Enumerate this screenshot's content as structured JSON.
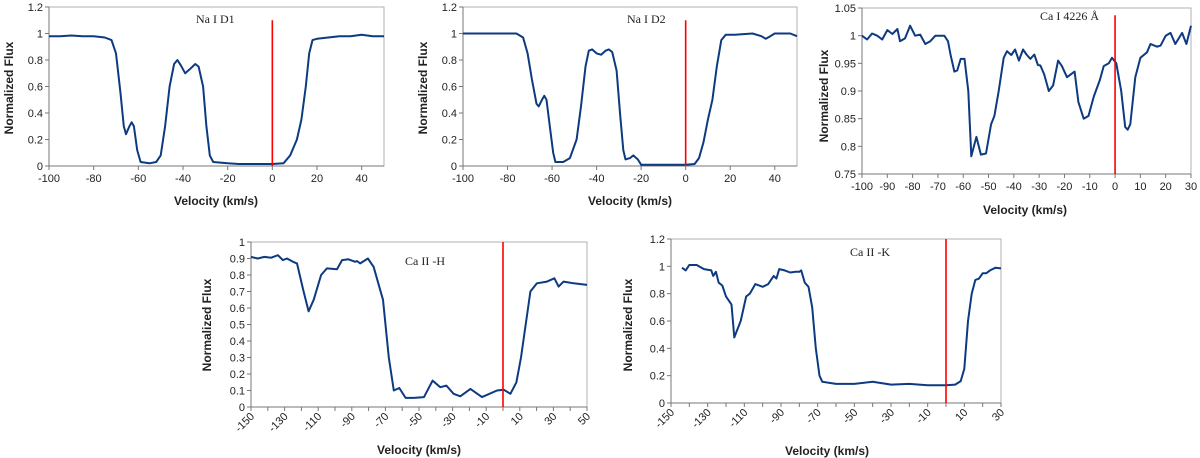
{
  "chart_data": [
    {
      "type": "line",
      "title": "Na I D1",
      "xlabel": "Velocity (km/s)",
      "ylabel": "Normalized Flux",
      "xlim": [
        -100,
        50
      ],
      "ylim": [
        0,
        1.2
      ],
      "xticks": [
        -100,
        -80,
        -60,
        -40,
        -20,
        0,
        20,
        40
      ],
      "yticks": [
        "0",
        "0.2",
        "0.4",
        "0.6",
        "0.8",
        "1",
        "1.2"
      ],
      "grid": false,
      "line_color": "#0d3a80",
      "reference_line": {
        "x": 0,
        "y_range": [
          0,
          1.1
        ],
        "color": "#ff0000"
      },
      "series": [
        {
          "x": [
            -100,
            -95,
            -90,
            -85,
            -80,
            -75,
            -72,
            -70,
            -68,
            -66.5,
            -65.5,
            -64,
            -63,
            -62,
            -60.5,
            -59,
            -55,
            -52,
            -50,
            -48,
            -46,
            -44,
            -42.5,
            -41,
            -39,
            -37,
            -34.5,
            -33,
            -31,
            -29.5,
            -28,
            -26.5,
            -20,
            -15,
            0,
            5,
            8,
            11,
            13,
            15,
            16.5,
            18,
            20,
            25,
            30,
            35,
            40,
            45,
            50
          ],
          "y": [
            0.98,
            0.98,
            0.985,
            0.98,
            0.98,
            0.97,
            0.95,
            0.85,
            0.55,
            0.3,
            0.24,
            0.3,
            0.33,
            0.3,
            0.12,
            0.03,
            0.02,
            0.03,
            0.08,
            0.3,
            0.6,
            0.77,
            0.8,
            0.76,
            0.7,
            0.73,
            0.77,
            0.75,
            0.6,
            0.3,
            0.08,
            0.03,
            0.02,
            0.015,
            0.015,
            0.02,
            0.08,
            0.2,
            0.35,
            0.6,
            0.85,
            0.95,
            0.96,
            0.97,
            0.98,
            0.98,
            0.99,
            0.98,
            0.98
          ]
        }
      ]
    },
    {
      "type": "line",
      "title": "Na I D2",
      "xlabel": "Velocity (km/s)",
      "ylabel": "Normalized Flux",
      "xlim": [
        -100,
        50
      ],
      "ylim": [
        0,
        1.2
      ],
      "xticks": [
        -100,
        -80,
        -60,
        -40,
        -20,
        0,
        20,
        40
      ],
      "yticks": [
        "0",
        "0.2",
        "0.4",
        "0.6",
        "0.8",
        "1",
        "1.2"
      ],
      "grid": false,
      "line_color": "#0d3a80",
      "reference_line": {
        "x": 0,
        "y_range": [
          0,
          1.1
        ],
        "color": "#ff0000"
      },
      "series": [
        {
          "x": [
            -100,
            -90,
            -80,
            -76,
            -73,
            -71,
            -69,
            -67,
            -66,
            -64.5,
            -63.5,
            -62.5,
            -61,
            -59.5,
            -58.5,
            -55,
            -52,
            -49,
            -47,
            -45,
            -43.5,
            -42,
            -40,
            -38,
            -36,
            -34.5,
            -33,
            -31,
            -29.5,
            -28,
            -27,
            -25,
            -23.5,
            -21.5,
            -20,
            0,
            4,
            6,
            8,
            10,
            12,
            14,
            16,
            18,
            22,
            30,
            34,
            36,
            38,
            40,
            47,
            50
          ],
          "y": [
            1.0,
            1.0,
            1.0,
            1.0,
            0.97,
            0.85,
            0.65,
            0.47,
            0.45,
            0.5,
            0.53,
            0.5,
            0.3,
            0.1,
            0.03,
            0.03,
            0.06,
            0.2,
            0.45,
            0.75,
            0.87,
            0.88,
            0.85,
            0.84,
            0.87,
            0.88,
            0.86,
            0.72,
            0.4,
            0.12,
            0.05,
            0.06,
            0.08,
            0.05,
            0.01,
            0.01,
            0.015,
            0.06,
            0.18,
            0.35,
            0.5,
            0.75,
            0.95,
            0.99,
            0.99,
            1.0,
            0.98,
            0.96,
            0.98,
            1.0,
            1.0,
            0.98
          ]
        }
      ]
    },
    {
      "type": "line",
      "title": "Ca I 4226 Å",
      "xlabel": "Velocity (km/s)",
      "ylabel": "Normalized Flux",
      "xlim": [
        -100,
        30
      ],
      "ylim": [
        0.75,
        1.05
      ],
      "xticks": [
        -100,
        -90,
        -80,
        -70,
        -60,
        -50,
        -40,
        -30,
        -20,
        -10,
        0,
        10,
        20,
        30
      ],
      "yticks": [
        "0.75",
        "0.8",
        "0.85",
        "0.9",
        "0.95",
        "1",
        "1.05"
      ],
      "grid": false,
      "line_color": "#0d3a80",
      "reference_line": {
        "x": 0,
        "y_range": [
          0.75,
          1.037
        ],
        "color": "#ff0000"
      },
      "series": [
        {
          "x": [
            -100,
            -98,
            -96,
            -94,
            -92,
            -90,
            -88,
            -86,
            -85,
            -83,
            -81,
            -79,
            -77,
            -75,
            -73,
            -71,
            -69,
            -67.5,
            -66,
            -65,
            -63.5,
            -62.4,
            -61,
            -59.5,
            -58,
            -56.8,
            -54.8,
            -53,
            -51,
            -49,
            -47.7,
            -46,
            -44,
            -42.7,
            -41,
            -39.5,
            -38,
            -36.4,
            -35,
            -33.5,
            -31.9,
            -30.5,
            -29.5,
            -28,
            -26.2,
            -24.5,
            -22.5,
            -21,
            -19,
            -16,
            -14.5,
            -12.4,
            -10.5,
            -8.4,
            -6,
            -4.5,
            -2.5,
            -1.2,
            0.5,
            2.4,
            4,
            5,
            6,
            8,
            10,
            12.6,
            14,
            16.6,
            18,
            20,
            21.9,
            23.8,
            26.5,
            28.2,
            30
          ],
          "y": [
            1.0,
            0.993,
            1.004,
            1.0,
            0.993,
            1.01,
            1.003,
            1.012,
            0.99,
            0.995,
            1.018,
            1.0,
            1.002,
            0.985,
            0.99,
            1.0,
            1.0,
            1.0,
            0.99,
            0.965,
            0.935,
            0.937,
            0.958,
            0.958,
            0.9,
            0.782,
            0.817,
            0.785,
            0.787,
            0.84,
            0.855,
            0.9,
            0.96,
            0.972,
            0.965,
            0.975,
            0.955,
            0.975,
            0.966,
            0.958,
            0.966,
            0.947,
            0.946,
            0.93,
            0.9,
            0.91,
            0.955,
            0.945,
            0.925,
            0.935,
            0.88,
            0.85,
            0.855,
            0.89,
            0.92,
            0.945,
            0.95,
            0.96,
            0.95,
            0.9,
            0.835,
            0.83,
            0.84,
            0.925,
            0.96,
            0.97,
            0.985,
            0.98,
            0.982,
            1.0,
            1.005,
            0.985,
            1.005,
            0.985,
            1.018
          ]
        }
      ]
    },
    {
      "type": "line",
      "title": "Ca II -H",
      "xlabel": "Velocity (km/s)",
      "ylabel": "Normalized Flux",
      "xlim": [
        -150,
        50
      ],
      "ylim": [
        0,
        1
      ],
      "xticks": [
        -150,
        -130,
        -110,
        -90,
        -70,
        -50,
        -30,
        -10,
        10,
        30,
        50
      ],
      "yticks": [
        "0",
        "0.1",
        "0.2",
        "0.3",
        "0.4",
        "0.5",
        "0.6",
        "0.7",
        "0.8",
        "0.9",
        "1"
      ],
      "grid": false,
      "line_color": "#0d3a80",
      "reference_line": {
        "x": 0,
        "y_range": [
          0,
          1
        ],
        "color": "#ff0000"
      },
      "series": [
        {
          "x": [
            -150,
            -146,
            -142,
            -138,
            -134,
            -131,
            -128.6,
            -125,
            -122.6,
            -118.7,
            -115.7,
            -112.7,
            -108.3,
            -104.8,
            -98.8,
            -95.8,
            -92,
            -88,
            -86.9,
            -85,
            -80.4,
            -77,
            -71.4,
            -68,
            -65,
            -61.7,
            -58,
            -53,
            -47,
            -41.9,
            -37.3,
            -33.7,
            -29.4,
            -25.4,
            -19.4,
            -12.5,
            -3.6,
            0.4,
            4.4,
            8,
            10.7,
            16.3,
            20.2,
            26.2,
            30.6,
            33.1,
            36.1,
            42,
            50
          ],
          "y": [
            0.91,
            0.9,
            0.91,
            0.905,
            0.92,
            0.89,
            0.9,
            0.88,
            0.87,
            0.7,
            0.58,
            0.65,
            0.8,
            0.84,
            0.835,
            0.89,
            0.895,
            0.88,
            0.885,
            0.87,
            0.9,
            0.85,
            0.65,
            0.3,
            0.1,
            0.115,
            0.055,
            0.055,
            0.06,
            0.16,
            0.12,
            0.13,
            0.08,
            0.065,
            0.11,
            0.06,
            0.1,
            0.105,
            0.08,
            0.15,
            0.3,
            0.7,
            0.75,
            0.76,
            0.78,
            0.73,
            0.76,
            0.75,
            0.74
          ]
        }
      ]
    },
    {
      "type": "line",
      "title": "Ca II -K",
      "xlabel": "Velocity (km/s)",
      "ylabel": "Normalized Flux",
      "xlim": [
        -150,
        30
      ],
      "ylim": [
        0,
        1.2
      ],
      "xticks": [
        -150,
        -130,
        -110,
        -90,
        -70,
        -50,
        -30,
        -10,
        10,
        30
      ],
      "yticks": [
        "0",
        "0.2",
        "0.4",
        "0.6",
        "0.8",
        "1",
        "1.2"
      ],
      "grid": false,
      "line_color": "#0d3a80",
      "reference_line": {
        "x": 0,
        "y_range": [
          0,
          1.2
        ],
        "color": "#ff0000"
      },
      "series": [
        {
          "x": [
            -144,
            -142,
            -140,
            -136,
            -132,
            -128,
            -127,
            -125.5,
            -124,
            -122,
            -120,
            -117,
            -115.5,
            -112,
            -109,
            -107,
            -104,
            -100,
            -97,
            -94,
            -92.5,
            -91,
            -88,
            -85,
            -82,
            -80,
            -79,
            -77,
            -75,
            -73,
            -71,
            -69,
            -67.5,
            -60,
            -50,
            -40,
            -30,
            -20,
            -10,
            0,
            5,
            8,
            10,
            12,
            14,
            16,
            18,
            20,
            22,
            24,
            27,
            30
          ],
          "y": [
            0.99,
            0.97,
            1.01,
            1.01,
            0.98,
            0.97,
            0.93,
            0.96,
            0.88,
            0.86,
            0.78,
            0.72,
            0.48,
            0.6,
            0.78,
            0.8,
            0.87,
            0.85,
            0.87,
            0.93,
            0.91,
            0.98,
            0.97,
            0.955,
            0.96,
            0.96,
            0.97,
            0.88,
            0.85,
            0.7,
            0.4,
            0.2,
            0.155,
            0.14,
            0.14,
            0.155,
            0.135,
            0.14,
            0.13,
            0.13,
            0.135,
            0.16,
            0.25,
            0.6,
            0.8,
            0.9,
            0.91,
            0.95,
            0.95,
            0.97,
            0.99,
            0.985
          ]
        }
      ]
    }
  ]
}
